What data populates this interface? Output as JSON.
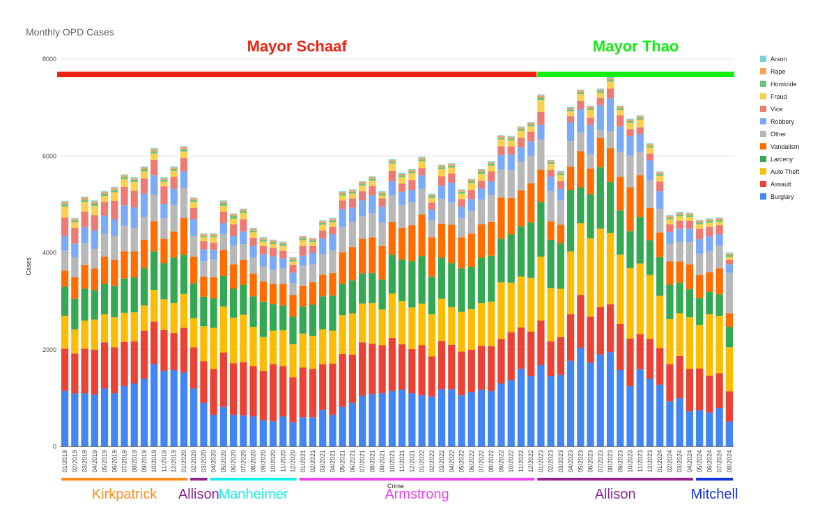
{
  "chart_data": {
    "type": "bar",
    "stacked": true,
    "title": "Monthly OPD Cases",
    "xlabel": "Crime",
    "ylabel": "Cases",
    "ylim": [
      0,
      8000
    ],
    "yticks": [
      0,
      2000,
      4000,
      6000,
      8000
    ],
    "grid": true,
    "legend_position": "right",
    "categories": [
      "01/2019",
      "02/2019",
      "03/2019",
      "04/2019",
      "05/2019",
      "06/2019",
      "07/2019",
      "08/2019",
      "09/2019",
      "10/2019",
      "11/2019",
      "12/2019",
      "01/2020",
      "02/2020",
      "03/2020",
      "04/2020",
      "05/2020",
      "06/2020",
      "07/2020",
      "08/2020",
      "09/2020",
      "10/2020",
      "11/2020",
      "12/2020",
      "01/2021",
      "02/2021",
      "03/2021",
      "04/2021",
      "05/2021",
      "06/2021",
      "07/2021",
      "08/2021",
      "09/2021",
      "10/2021",
      "11/2021",
      "12/2021",
      "01/2022",
      "02/2022",
      "03/2022",
      "04/2022",
      "05/2022",
      "06/2022",
      "07/2022",
      "08/2022",
      "09/2022",
      "10/2022",
      "11/2022",
      "12/2022",
      "01/2023",
      "02/2023",
      "03/2023",
      "04/2023",
      "05/2023",
      "06/2023",
      "07/2023",
      "08/2023",
      "09/2023",
      "10/2023",
      "11/2023",
      "12/2023",
      "01/2024",
      "02/2024",
      "03/2024",
      "04/2024",
      "05/2024",
      "06/2024",
      "07/2024",
      "08/2024"
    ],
    "series": [
      {
        "name": "Burglary",
        "color": "#4285F4",
        "values": [
          1150,
          1100,
          1100,
          1070,
          1200,
          1100,
          1250,
          1300,
          1400,
          1700,
          1560,
          1580,
          1530,
          1200,
          900,
          650,
          820,
          650,
          640,
          620,
          540,
          520,
          620,
          500,
          600,
          600,
          750,
          650,
          820,
          900,
          1050,
          1080,
          1100,
          1150,
          1170,
          1100,
          1060,
          1030,
          1180,
          1180,
          1060,
          1120,
          1170,
          1150,
          1300,
          1370,
          1600,
          1450,
          1680,
          1450,
          1480,
          1770,
          2040,
          1730,
          1900,
          1950,
          1580,
          1250,
          1590,
          1400,
          1270,
          930,
          1000,
          730,
          750,
          700,
          790,
          510
        ]
      },
      {
        "name": "Assault",
        "color": "#EA4335",
        "values": [
          870,
          820,
          920,
          930,
          950,
          950,
          910,
          870,
          990,
          880,
          850,
          760,
          920,
          850,
          860,
          950,
          1120,
          1070,
          1100,
          1040,
          1020,
          1180,
          1040,
          930,
          1030,
          1000,
          950,
          1060,
          1090,
          1000,
          1100,
          1040,
          990,
          1090,
          940,
          910,
          1030,
          830,
          1000,
          920,
          900,
          880,
          910,
          920,
          920,
          990,
          860,
          920,
          920,
          720,
          780,
          960,
          1090,
          950,
          980,
          990,
          950,
          980,
          730,
          820,
          760,
          770,
          870,
          870,
          860,
          760,
          720,
          630
        ]
      },
      {
        "name": "Auto Theft",
        "color": "#FBBC04",
        "values": [
          680,
          500,
          580,
          620,
          580,
          620,
          600,
          600,
          520,
          650,
          630,
          620,
          700,
          600,
          720,
          850,
          950,
          940,
          980,
          810,
          700,
          690,
          740,
          680,
          700,
          680,
          720,
          680,
          800,
          850,
          800,
          840,
          740,
          920,
          890,
          860,
          860,
          870,
          870,
          780,
          820,
          840,
          880,
          920,
          1170,
          1020,
          1050,
          1110,
          1320,
          1100,
          1000,
          1300,
          1480,
          1620,
          1620,
          1470,
          1430,
          1460,
          1460,
          1320,
          1080,
          930,
          880,
          1070,
          900,
          1270,
          1190,
          910
        ]
      },
      {
        "name": "Larceny",
        "color": "#34A853",
        "values": [
          600,
          630,
          660,
          610,
          630,
          650,
          710,
          720,
          770,
          800,
          750,
          940,
          810,
          720,
          610,
          610,
          630,
          600,
          620,
          630,
          730,
          550,
          510,
          570,
          560,
          650,
          680,
          730,
          650,
          680,
          620,
          620,
          620,
          800,
          860,
          960,
          980,
          780,
          850,
          910,
          900,
          870,
          940,
          950,
          900,
          1000,
          1040,
          1150,
          1130,
          1000,
          940,
          1270,
          740,
          910,
          1270,
          1050,
          920,
          760,
          960,
          720,
          800,
          710,
          630,
          580,
          560,
          460,
          440,
          420
        ]
      },
      {
        "name": "Vandalism",
        "color": "#FF6D01",
        "values": [
          330,
          450,
          490,
          440,
          560,
          530,
          560,
          540,
          590,
          620,
          500,
          540,
          760,
          550,
          420,
          440,
          540,
          500,
          510,
          470,
          420,
          420,
          450,
          450,
          430,
          460,
          450,
          460,
          650,
          690,
          720,
          740,
          690,
          680,
          650,
          740,
          860,
          810,
          700,
          790,
          640,
          690,
          690,
          700,
          850,
          750,
          740,
          810,
          670,
          380,
          380,
          480,
          750,
          530,
          600,
          700,
          690,
          900,
          860,
          670,
          510,
          480,
          440,
          510,
          470,
          410,
          540,
          280
        ]
      },
      {
        "name": "Other",
        "color": "#B8B8B8",
        "values": [
          410,
          400,
          450,
          410,
          470,
          500,
          530,
          480,
          470,
          550,
          420,
          550,
          620,
          430,
          320,
          360,
          330,
          390,
          330,
          330,
          300,
          290,
          320,
          240,
          410,
          380,
          420,
          470,
          520,
          520,
          460,
          500,
          480,
          550,
          480,
          470,
          530,
          350,
          520,
          460,
          400,
          460,
          510,
          550,
          580,
          580,
          590,
          560,
          620,
          620,
          500,
          520,
          380,
          300,
          160,
          350,
          520,
          660,
          490,
          560,
          490,
          360,
          400,
          460,
          440,
          430,
          470,
          830
        ]
      },
      {
        "name": "Robbery",
        "color": "#7BAAF7",
        "values": [
          310,
          290,
          330,
          380,
          380,
          340,
          420,
          430,
          480,
          400,
          300,
          330,
          340,
          340,
          240,
          200,
          220,
          200,
          260,
          240,
          260,
          280,
          210,
          220,
          210,
          230,
          330,
          330,
          370,
          290,
          330,
          370,
          330,
          290,
          270,
          260,
          280,
          220,
          270,
          410,
          230,
          250,
          230,
          290,
          300,
          320,
          300,
          300,
          300,
          300,
          240,
          400,
          480,
          600,
          520,
          680,
          520,
          400,
          360,
          420,
          360,
          250,
          280,
          280,
          300,
          310,
          230,
          180
        ]
      },
      {
        "name": "Vice",
        "color": "#EE7B73",
        "values": [
          380,
          320,
          320,
          320,
          280,
          380,
          380,
          340,
          320,
          320,
          360,
          250,
          280,
          240,
          170,
          150,
          240,
          240,
          250,
          170,
          170,
          170,
          150,
          160,
          200,
          140,
          160,
          160,
          180,
          190,
          190,
          190,
          170,
          210,
          170,
          200,
          150,
          150,
          190,
          190,
          160,
          190,
          160,
          200,
          180,
          170,
          200,
          200,
          270,
          140,
          160,
          120,
          180,
          150,
          150,
          200,
          230,
          140,
          140,
          140,
          200,
          160,
          160,
          160,
          220,
          200,
          190,
          90
        ]
      },
      {
        "name": "Fraud",
        "color": "#FCD04F",
        "values": [
          220,
          120,
          200,
          190,
          120,
          180,
          160,
          180,
          140,
          130,
          100,
          120,
          130,
          120,
          80,
          110,
          120,
          110,
          130,
          110,
          90,
          80,
          100,
          70,
          120,
          80,
          120,
          90,
          100,
          100,
          120,
          110,
          60,
          150,
          130,
          140,
          140,
          90,
          150,
          120,
          110,
          140,
          140,
          120,
          140,
          120,
          140,
          110,
          240,
          120,
          120,
          100,
          140,
          160,
          100,
          150,
          110,
          130,
          160,
          120,
          120,
          100,
          90,
          80,
          90,
          80,
          70,
          60
        ]
      },
      {
        "name": "Homicide",
        "color": "#6FC27F",
        "values": [
          60,
          40,
          50,
          50,
          50,
          50,
          50,
          50,
          50,
          50,
          40,
          40,
          50,
          40,
          30,
          30,
          60,
          60,
          40,
          40,
          40,
          40,
          40,
          40,
          40,
          40,
          40,
          40,
          40,
          40,
          40,
          40,
          40,
          40,
          40,
          40,
          40,
          40,
          40,
          40,
          40,
          40,
          50,
          40,
          40,
          40,
          40,
          40,
          60,
          40,
          40,
          40,
          40,
          40,
          40,
          40,
          40,
          40,
          40,
          40,
          40,
          40,
          40,
          40,
          40,
          40,
          40,
          40
        ]
      },
      {
        "name": "Rape",
        "color": "#FFA15A",
        "values": [
          40,
          30,
          40,
          40,
          30,
          40,
          30,
          30,
          30,
          40,
          30,
          30,
          40,
          30,
          30,
          30,
          30,
          30,
          30,
          30,
          30,
          30,
          30,
          30,
          30,
          30,
          30,
          30,
          30,
          30,
          30,
          30,
          30,
          30,
          30,
          30,
          30,
          30,
          30,
          30,
          30,
          30,
          30,
          30,
          30,
          30,
          30,
          30,
          40,
          30,
          30,
          30,
          30,
          30,
          30,
          30,
          30,
          30,
          30,
          30,
          30,
          30,
          30,
          30,
          30,
          30,
          30,
          30
        ]
      },
      {
        "name": "Arson",
        "color": "#7CD0DC",
        "values": [
          20,
          20,
          20,
          20,
          20,
          20,
          20,
          20,
          20,
          20,
          20,
          20,
          20,
          20,
          20,
          20,
          20,
          20,
          20,
          20,
          20,
          20,
          20,
          20,
          20,
          20,
          20,
          20,
          20,
          20,
          20,
          20,
          20,
          20,
          20,
          20,
          20,
          20,
          20,
          20,
          20,
          20,
          20,
          20,
          20,
          20,
          20,
          20,
          20,
          20,
          20,
          20,
          20,
          20,
          20,
          20,
          20,
          20,
          20,
          20,
          20,
          20,
          20,
          20,
          20,
          20,
          20,
          20
        ]
      }
    ],
    "mayors": [
      {
        "name": "Mayor Schaaf",
        "color": "#EE2211",
        "start": "01/2019",
        "end": "12/2022"
      },
      {
        "name": "Mayor Thao",
        "color": "#11EE11",
        "start": "01/2023",
        "end": "08/2024"
      }
    ],
    "chiefs": [
      {
        "name": "Kirkpatrick",
        "color": "#FF8C1A",
        "start": "01/2019",
        "end": "01/2020"
      },
      {
        "name": "Allison",
        "color": "#8E2490",
        "start": "02/2020",
        "end": "03/2020"
      },
      {
        "name": "Manheimer",
        "color": "#11EEEE",
        "start": "04/2020",
        "end": "12/2020"
      },
      {
        "name": "Armstrong",
        "color": "#EE44EE",
        "start": "01/2021",
        "end": "12/2022"
      },
      {
        "name": "Allison",
        "color": "#8E2490",
        "start": "01/2023",
        "end": "04/2024"
      },
      {
        "name": "Mitchell",
        "color": "#1133DD",
        "start": "05/2024",
        "end": "08/2024"
      }
    ]
  }
}
